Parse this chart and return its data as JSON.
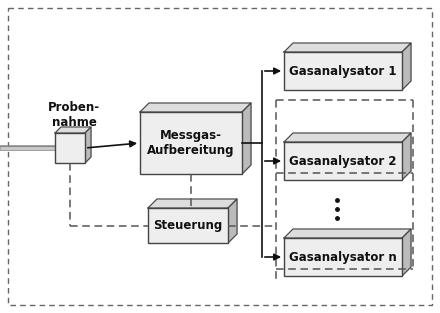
{
  "bg_color": "#ffffff",
  "outer_border_color": "#666666",
  "box_face_color": "#eeeeee",
  "box_edge_color": "#444444",
  "box_shadow_color": "#bbbbbb",
  "box_top_color": "#dddddd",
  "solid_line_color": "#111111",
  "dashed_line_color": "#555555",
  "text_color": "#111111",
  "pipe_color_outer": "#888888",
  "pipe_color_inner": "#cccccc",
  "font_size": 8.5,
  "probennahme_label": "Proben-\nnahme",
  "messgas_label": "Messgas-\nAufbereitung",
  "steuerung_label": "Steuerung",
  "analyser1_label": "Gasanalysator 1",
  "analyser2_label": "Gasanalysator 2",
  "analysern_label": "Gasanalysator n",
  "figw": 4.4,
  "figh": 3.13,
  "dpi": 100
}
